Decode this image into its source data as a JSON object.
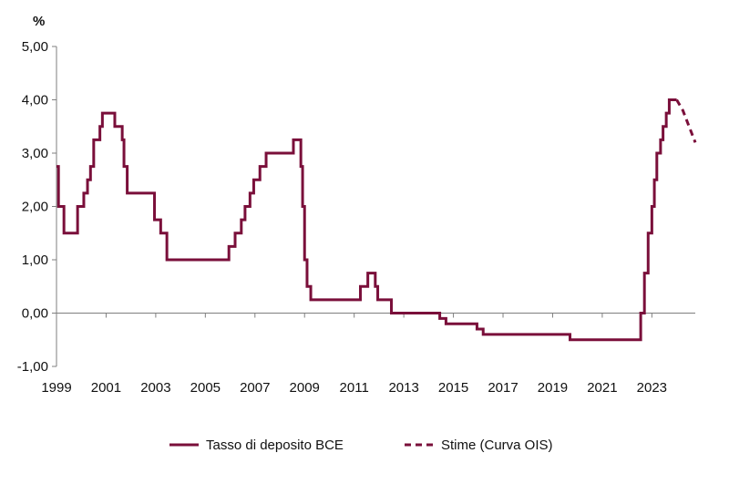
{
  "chart_data": {
    "type": "line",
    "title": "",
    "xlabel": "",
    "ylabel": "",
    "y_unit": "%",
    "xlim": [
      1999.0,
      2024.75
    ],
    "ylim": [
      -1.0,
      5.0
    ],
    "x_ticks": [
      1999,
      2001,
      2003,
      2005,
      2007,
      2009,
      2011,
      2013,
      2015,
      2017,
      2019,
      2021,
      2023
    ],
    "y_ticks": [
      "5,00",
      "4,00",
      "3,00",
      "2,00",
      "1,00",
      "0,00",
      "-1,00"
    ],
    "y_tick_values": [
      5,
      4,
      3,
      2,
      1,
      0,
      -1
    ],
    "grid": false,
    "legend_position": "bottom",
    "color": "#7a0f3a",
    "series": [
      {
        "name": "Tasso di deposito BCE",
        "style": "solid",
        "step": true,
        "points": [
          [
            1999.0,
            2.75
          ],
          [
            1999.08,
            2.0
          ],
          [
            1999.3,
            1.5
          ],
          [
            1999.85,
            2.0
          ],
          [
            2000.1,
            2.25
          ],
          [
            2000.25,
            2.5
          ],
          [
            2000.37,
            2.75
          ],
          [
            2000.5,
            3.25
          ],
          [
            2000.75,
            3.5
          ],
          [
            2000.85,
            3.75
          ],
          [
            2001.35,
            3.5
          ],
          [
            2001.65,
            3.25
          ],
          [
            2001.72,
            2.75
          ],
          [
            2001.85,
            2.25
          ],
          [
            2002.95,
            1.75
          ],
          [
            2003.2,
            1.5
          ],
          [
            2003.45,
            1.0
          ],
          [
            2005.95,
            1.25
          ],
          [
            2006.2,
            1.5
          ],
          [
            2006.45,
            1.75
          ],
          [
            2006.6,
            2.0
          ],
          [
            2006.8,
            2.25
          ],
          [
            2006.95,
            2.5
          ],
          [
            2007.2,
            2.75
          ],
          [
            2007.45,
            3.0
          ],
          [
            2008.55,
            3.25
          ],
          [
            2008.85,
            2.75
          ],
          [
            2008.92,
            2.0
          ],
          [
            2009.0,
            1.0
          ],
          [
            2009.1,
            0.5
          ],
          [
            2009.25,
            0.25
          ],
          [
            2011.25,
            0.5
          ],
          [
            2011.55,
            0.75
          ],
          [
            2011.85,
            0.5
          ],
          [
            2011.95,
            0.25
          ],
          [
            2012.5,
            0.0
          ],
          [
            2014.45,
            -0.1
          ],
          [
            2014.7,
            -0.2
          ],
          [
            2015.95,
            -0.3
          ],
          [
            2016.2,
            -0.4
          ],
          [
            2019.7,
            -0.5
          ],
          [
            2022.55,
            0.0
          ],
          [
            2022.7,
            0.75
          ],
          [
            2022.85,
            1.5
          ],
          [
            2023.0,
            2.0
          ],
          [
            2023.1,
            2.5
          ],
          [
            2023.2,
            3.0
          ],
          [
            2023.35,
            3.25
          ],
          [
            2023.45,
            3.5
          ],
          [
            2023.58,
            3.75
          ],
          [
            2023.7,
            4.0
          ],
          [
            2024.0,
            4.0
          ]
        ]
      },
      {
        "name": "Stime (Curva OIS)",
        "style": "dashed",
        "step": false,
        "points": [
          [
            2024.0,
            4.0
          ],
          [
            2024.25,
            3.8
          ],
          [
            2024.5,
            3.5
          ],
          [
            2024.75,
            3.2
          ]
        ]
      }
    ]
  }
}
